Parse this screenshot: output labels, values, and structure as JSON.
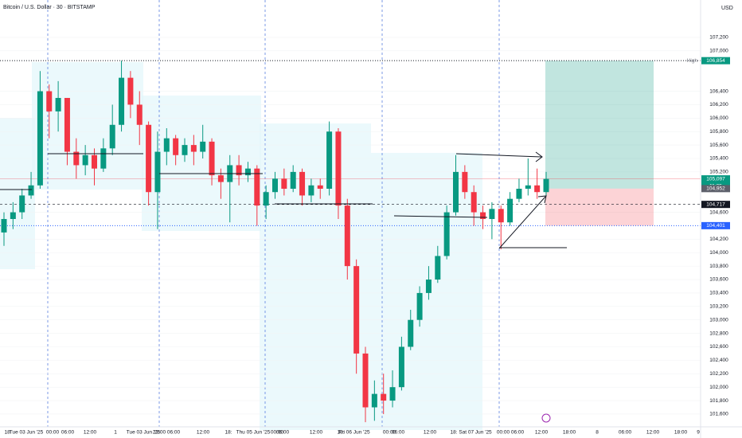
{
  "chart_data": {
    "type": "candlestick",
    "title": "Bitcoin / U.S. Dollar · 30 · BITSTAMP",
    "currency": "USD",
    "up_color": "#089981",
    "down_color": "#f23645",
    "ylim": [
      101410,
      107756
    ],
    "yticks": [
      {
        "value": 101600,
        "label": "101,600"
      },
      {
        "value": 101800,
        "label": "101,800"
      },
      {
        "value": 102000,
        "label": "102,000"
      },
      {
        "value": 102200,
        "label": "102,200"
      },
      {
        "value": 102400,
        "label": "102,400"
      },
      {
        "value": 102600,
        "label": "102,600"
      },
      {
        "value": 102800,
        "label": "102,800"
      },
      {
        "value": 103000,
        "label": "103,000"
      },
      {
        "value": 103200,
        "label": "103,200"
      },
      {
        "value": 103400,
        "label": "103,400"
      },
      {
        "value": 103600,
        "label": "103,600"
      },
      {
        "value": 103800,
        "label": "103,800"
      },
      {
        "value": 104000,
        "label": "104,000"
      },
      {
        "value": 104200,
        "label": "104,200"
      },
      {
        "value": 104600,
        "label": "104,600"
      },
      {
        "value": 105200,
        "label": "105,200"
      },
      {
        "value": 105400,
        "label": "105,400"
      },
      {
        "value": 105600,
        "label": "105,600"
      },
      {
        "value": 105800,
        "label": "105,800"
      },
      {
        "value": 106000,
        "label": "106,000"
      },
      {
        "value": 106200,
        "label": "106,200"
      },
      {
        "value": 106400,
        "label": "106,400"
      },
      {
        "value": 107000,
        "label": "107,000"
      },
      {
        "value": 107200,
        "label": "107,200"
      }
    ],
    "x_labels": [
      "18:",
      "Tue 03 Jun '25",
      "00:00",
      "06:00",
      "12:00",
      "1",
      "Tue 03 Jun '25",
      "23:00",
      "06:00",
      "12:00",
      "18:",
      "Thu 05 Jun '25",
      "00:00",
      "06:00",
      "12:00",
      "18:",
      "Fri 06 Jun '25",
      "00:00",
      "06:00",
      "12:00",
      "18:",
      "Sat 07 Jun '25",
      "00:00",
      "06:00",
      "12:00",
      "18:00",
      "8",
      "06:00",
      "12:00",
      "18:00",
      "9"
    ],
    "price_labels": [
      {
        "value": 106854,
        "label": "106,854",
        "color": "#089981",
        "tag": "High"
      },
      {
        "value": 105097,
        "label": "105,097",
        "color": "#089981",
        "tag": "11:25"
      },
      {
        "value": 104952,
        "label": "104,952",
        "color": "#5d606b"
      },
      {
        "value": 104717,
        "label": "104,717",
        "color": "#131722"
      },
      {
        "value": 104401,
        "label": "104,401",
        "color": "#2962ff"
      }
    ],
    "candles": [
      [
        104300,
        104600,
        104100,
        104500
      ],
      [
        104500,
        104750,
        104350,
        104600
      ],
      [
        104600,
        104950,
        104500,
        104850
      ],
      [
        104850,
        105200,
        104800,
        105000
      ],
      [
        105000,
        106700,
        104950,
        106400
      ],
      [
        106400,
        106500,
        105700,
        106100
      ],
      [
        106100,
        106550,
        105800,
        106300
      ],
      [
        106300,
        106300,
        105300,
        105500
      ],
      [
        105500,
        105700,
        105100,
        105300
      ],
      [
        105300,
        105600,
        105150,
        105450
      ],
      [
        105450,
        105550,
        105000,
        105250
      ],
      [
        105250,
        105700,
        105200,
        105550
      ],
      [
        105550,
        106200,
        105450,
        105900
      ],
      [
        105900,
        106854,
        105800,
        106600
      ],
      [
        106600,
        106700,
        106000,
        106200
      ],
      [
        106200,
        106400,
        105600,
        105900
      ],
      [
        105900,
        105950,
        104700,
        104900
      ],
      [
        104900,
        105800,
        104350,
        105500
      ],
      [
        105500,
        105850,
        105300,
        105700
      ],
      [
        105700,
        105750,
        105300,
        105450
      ],
      [
        105450,
        105700,
        105350,
        105600
      ],
      [
        105600,
        105750,
        105300,
        105500
      ],
      [
        105500,
        105900,
        105400,
        105650
      ],
      [
        105650,
        105700,
        105000,
        105150
      ],
      [
        105150,
        105250,
        104800,
        105050
      ],
      [
        105050,
        105450,
        104450,
        105300
      ],
      [
        105300,
        105450,
        105000,
        105150
      ],
      [
        105150,
        105350,
        105050,
        105250
      ],
      [
        105250,
        105300,
        104400,
        104700
      ],
      [
        104700,
        105000,
        104500,
        104900
      ],
      [
        104900,
        105200,
        104800,
        105100
      ],
      [
        105100,
        105250,
        104850,
        104950
      ],
      [
        104950,
        105300,
        104900,
        105200
      ],
      [
        105200,
        105250,
        104700,
        104850
      ],
      [
        104850,
        105100,
        104750,
        105000
      ],
      [
        105000,
        105100,
        104800,
        104950
      ],
      [
        104950,
        105950,
        104850,
        105800
      ],
      [
        105800,
        105850,
        104500,
        104700
      ],
      [
        104700,
        104800,
        103600,
        103800
      ],
      [
        103800,
        103900,
        102200,
        102500
      ],
      [
        102500,
        102600,
        101480,
        101700
      ],
      [
        101700,
        102100,
        101500,
        101900
      ],
      [
        101900,
        102200,
        101600,
        101800
      ],
      [
        101800,
        102250,
        101700,
        102000
      ],
      [
        102000,
        102750,
        101950,
        102600
      ],
      [
        102600,
        103150,
        102550,
        103000
      ],
      [
        103000,
        103500,
        102900,
        103400
      ],
      [
        103400,
        103800,
        103300,
        103600
      ],
      [
        103600,
        104100,
        103550,
        103950
      ],
      [
        103950,
        104700,
        103900,
        104600
      ],
      [
        104600,
        105450,
        104550,
        105200
      ],
      [
        105200,
        105300,
        104800,
        104900
      ],
      [
        104900,
        105000,
        104400,
        104600
      ],
      [
        104600,
        104700,
        104350,
        104500
      ],
      [
        104500,
        104750,
        104200,
        104650
      ],
      [
        104650,
        104700,
        104050,
        104450
      ],
      [
        104450,
        104900,
        104400,
        104800
      ],
      [
        104800,
        105100,
        104750,
        104950
      ],
      [
        104950,
        105400,
        104850,
        105000
      ],
      [
        105000,
        105250,
        104800,
        104900
      ],
      [
        104900,
        105200,
        104850,
        105097
      ]
    ]
  }
}
